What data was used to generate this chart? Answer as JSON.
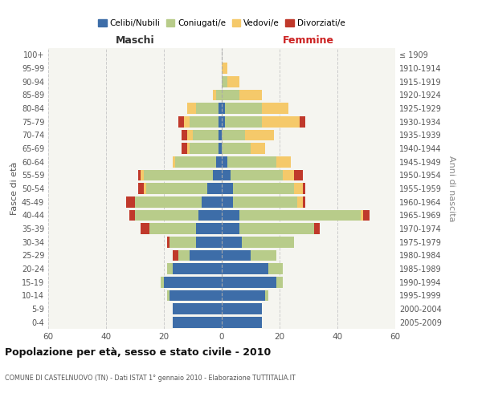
{
  "age_groups": [
    "0-4",
    "5-9",
    "10-14",
    "15-19",
    "20-24",
    "25-29",
    "30-34",
    "35-39",
    "40-44",
    "45-49",
    "50-54",
    "55-59",
    "60-64",
    "65-69",
    "70-74",
    "75-79",
    "80-84",
    "85-89",
    "90-94",
    "95-99",
    "100+"
  ],
  "birth_years": [
    "2005-2009",
    "2000-2004",
    "1995-1999",
    "1990-1994",
    "1985-1989",
    "1980-1984",
    "1975-1979",
    "1970-1974",
    "1965-1969",
    "1960-1964",
    "1955-1959",
    "1950-1954",
    "1945-1949",
    "1940-1944",
    "1935-1939",
    "1930-1934",
    "1925-1929",
    "1920-1924",
    "1915-1919",
    "1910-1914",
    "≤ 1909"
  ],
  "male": {
    "celibi": [
      17,
      17,
      18,
      20,
      17,
      11,
      9,
      9,
      8,
      7,
      5,
      3,
      2,
      1,
      1,
      1,
      1,
      0,
      0,
      0,
      0
    ],
    "coniugati": [
      0,
      0,
      1,
      1,
      2,
      4,
      9,
      16,
      22,
      23,
      21,
      24,
      14,
      10,
      9,
      10,
      8,
      2,
      0,
      0,
      0
    ],
    "vedovi": [
      0,
      0,
      0,
      0,
      0,
      0,
      0,
      0,
      0,
      0,
      1,
      1,
      1,
      1,
      2,
      2,
      3,
      1,
      0,
      0,
      0
    ],
    "divorziati": [
      0,
      0,
      0,
      0,
      0,
      2,
      1,
      3,
      2,
      3,
      2,
      1,
      0,
      2,
      2,
      2,
      0,
      0,
      0,
      0,
      0
    ]
  },
  "female": {
    "nubili": [
      14,
      14,
      15,
      19,
      16,
      10,
      7,
      6,
      6,
      4,
      4,
      3,
      2,
      0,
      0,
      1,
      1,
      0,
      0,
      0,
      0
    ],
    "coniugate": [
      0,
      0,
      1,
      2,
      5,
      9,
      18,
      26,
      42,
      22,
      21,
      18,
      17,
      10,
      8,
      13,
      13,
      6,
      2,
      0,
      0
    ],
    "vedove": [
      0,
      0,
      0,
      0,
      0,
      0,
      0,
      0,
      1,
      2,
      3,
      4,
      5,
      5,
      10,
      13,
      9,
      8,
      4,
      2,
      0
    ],
    "divorziate": [
      0,
      0,
      0,
      0,
      0,
      0,
      0,
      2,
      2,
      1,
      1,
      3,
      0,
      0,
      0,
      2,
      0,
      0,
      0,
      0,
      0
    ]
  },
  "colors": {
    "celibi": "#3d6da8",
    "coniugati": "#b8cc8a",
    "vedovi": "#f5c96a",
    "divorziati": "#c0392b"
  },
  "xlim": 60,
  "title": "Popolazione per età, sesso e stato civile - 2010",
  "subtitle": "COMUNE DI CASTELNUOVO (TN) - Dati ISTAT 1° gennaio 2010 - Elaborazione TUTTITALIA.IT",
  "ylabel_left": "Fasce di età",
  "ylabel_right": "Anni di nascita",
  "xlabel_left": "Maschi",
  "xlabel_right": "Femmine",
  "bg_color": "#f5f5f0"
}
